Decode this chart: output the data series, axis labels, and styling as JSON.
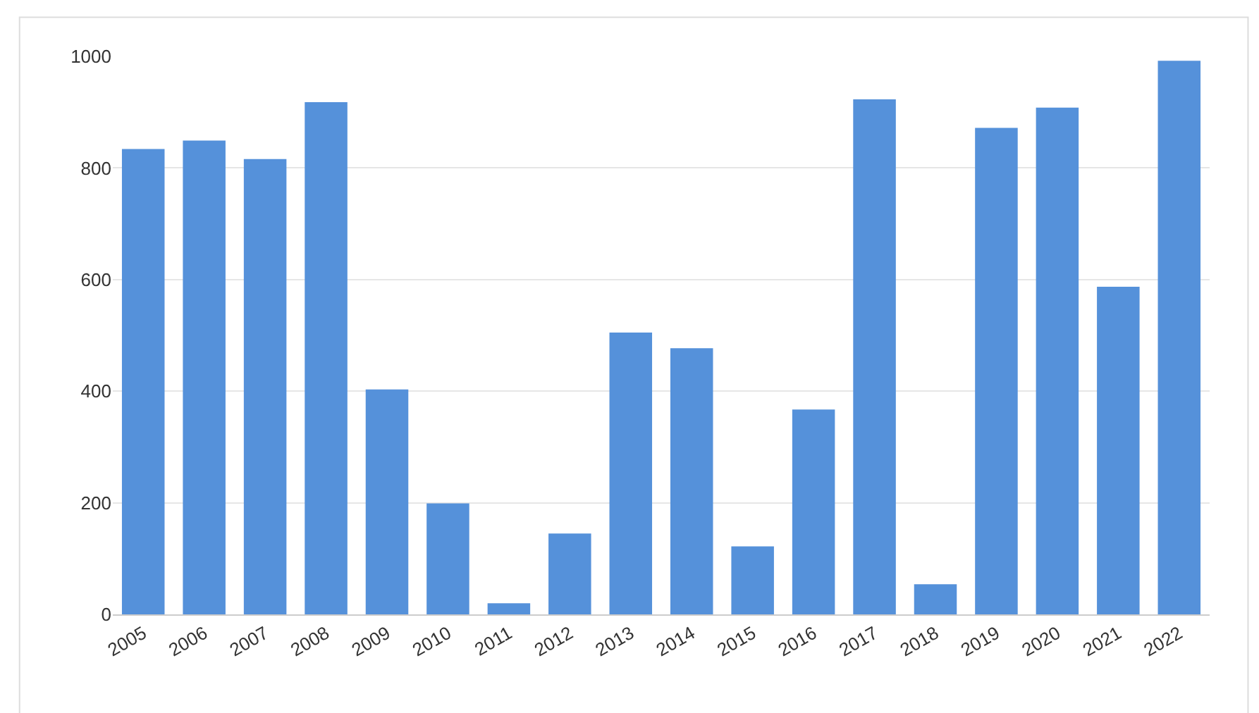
{
  "chart_data": {
    "type": "bar",
    "categories": [
      "2005",
      "2006",
      "2007",
      "2008",
      "2009",
      "2010",
      "2011",
      "2012",
      "2013",
      "2014",
      "2015",
      "2016",
      "2017",
      "2018",
      "2019",
      "2020",
      "2021",
      "2022"
    ],
    "values": [
      834,
      849,
      816,
      918,
      403,
      199,
      20,
      145,
      505,
      477,
      122,
      367,
      923,
      54,
      872,
      908,
      587,
      992
    ],
    "color": "#5591da",
    "ylim": [
      0,
      1000
    ],
    "yticks": [
      0,
      200,
      400,
      600,
      800,
      1000
    ],
    "grid": "y"
  }
}
